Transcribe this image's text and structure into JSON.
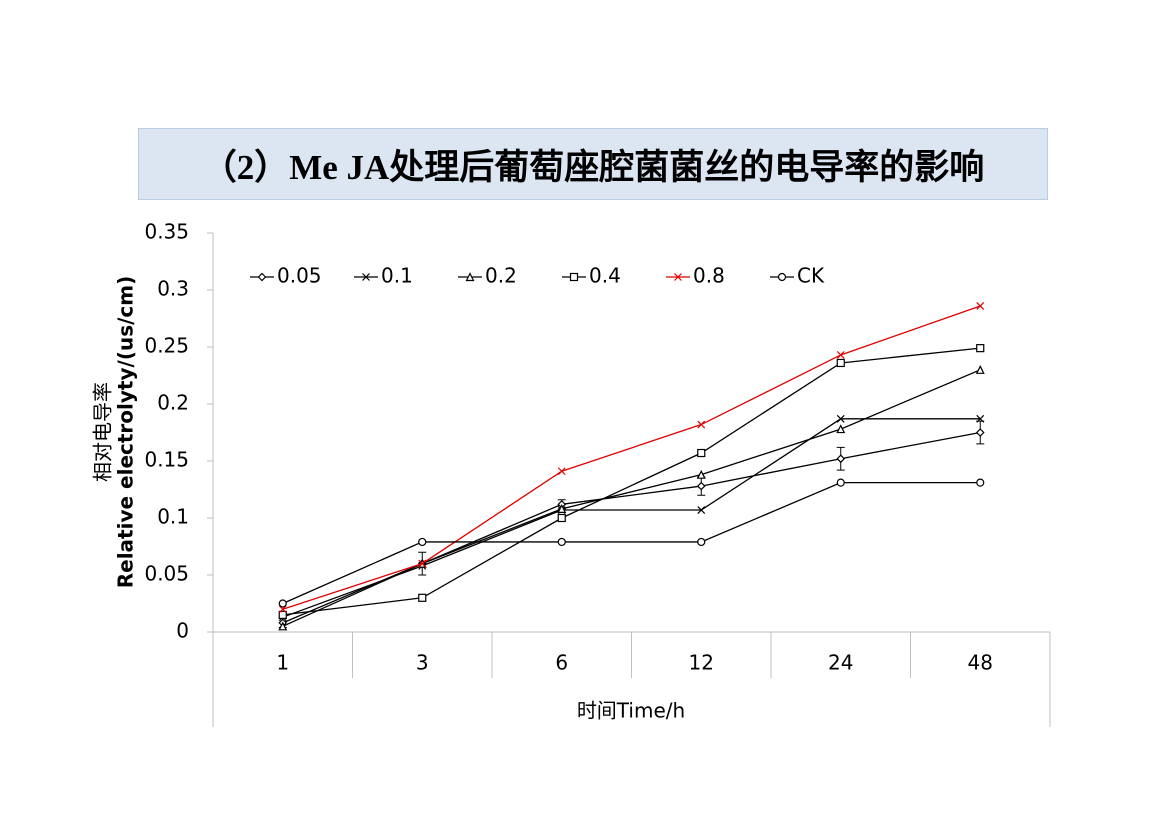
{
  "chart_data": {
    "type": "line",
    "title": "（2）Me JA处理后葡萄座腔菌菌丝的电导率的影响",
    "y_label": "相对电导率",
    "y_label_en": "Relative electrolyty/(us/cm)",
    "x_label": "时间Time/h",
    "categories": [
      "1",
      "3",
      "6",
      "12",
      "24",
      "48"
    ],
    "ylim": [
      0,
      0.35
    ],
    "yticks": [
      0,
      0.05,
      0.1,
      0.15,
      0.2,
      0.25,
      0.3,
      0.35
    ],
    "legend": "top",
    "series": [
      {
        "name": "0.05",
        "color": "#000000",
        "marker": "diamond",
        "values": [
          0.008,
          0.06,
          0.112,
          0.128,
          0.152,
          0.175
        ],
        "errors": [
          0.004,
          0.01,
          0.004,
          0.008,
          0.01,
          0.01
        ]
      },
      {
        "name": "0.1",
        "color": "#000000",
        "marker": "x",
        "values": [
          0.013,
          0.058,
          0.107,
          0.107,
          0.187,
          0.187
        ]
      },
      {
        "name": "0.2",
        "color": "#000000",
        "marker": "triangle",
        "values": [
          0.005,
          0.06,
          0.108,
          0.138,
          0.178,
          0.23
        ]
      },
      {
        "name": "0.4",
        "color": "#000000",
        "marker": "square",
        "values": [
          0.015,
          0.03,
          0.1,
          0.157,
          0.236,
          0.249
        ]
      },
      {
        "name": "0.8",
        "color": "#e00000",
        "marker": "x",
        "values": [
          0.02,
          0.06,
          0.141,
          0.182,
          0.243,
          0.286
        ]
      },
      {
        "name": "CK",
        "color": "#000000",
        "marker": "circle",
        "values": [
          0.025,
          0.079,
          0.079,
          0.079,
          0.131,
          0.131
        ]
      }
    ]
  }
}
